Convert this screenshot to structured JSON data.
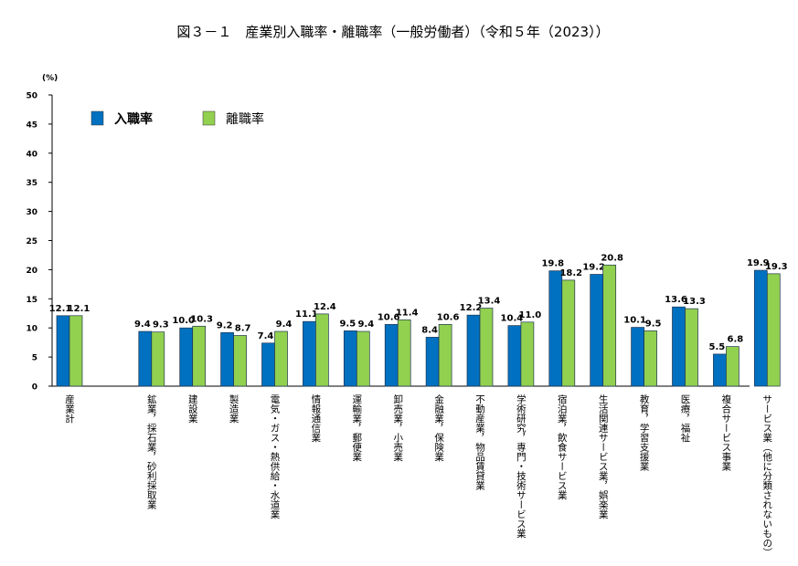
{
  "chart_data": {
    "type": "bar",
    "title": "図３－１　産業別入職率・離職率（一般労働者）（令和５年（2023））",
    "y_unit": "(%)",
    "categories": [
      "産業計",
      null,
      "鉱業，採石業，砂利採取業",
      "建設業",
      "製造業",
      "電気・ガス・熱供給・水道業",
      "情報通信業",
      "運輸業，郵便業",
      "卸売業，小売業",
      "金融業，保険業",
      "不動産業，物品賃貸業",
      "学術研究，専門・技術サービス業",
      "宿泊業，飲食サービス業",
      "生活関連サービス業，娯楽業",
      "教育，学習支援業",
      "医療，福祉",
      "複合サービス事業",
      "サービス業（他に分類されないもの）"
    ],
    "series": [
      {
        "name": "入職率",
        "color": "#0070c0",
        "values": [
          12.1,
          null,
          9.4,
          10.0,
          9.2,
          7.4,
          11.1,
          9.5,
          10.6,
          8.4,
          12.2,
          10.4,
          19.8,
          19.2,
          10.1,
          13.6,
          5.5,
          19.9
        ],
        "value_labels": [
          "12.1",
          null,
          "9.4",
          "10.0",
          "9.2",
          "7.4",
          "11.1",
          "9.5",
          "10.6",
          "8.4",
          "12.2",
          "10.4",
          "19.8",
          "19.2",
          "10.1",
          "13.6",
          "5.5",
          "19.9"
        ]
      },
      {
        "name": "離職率",
        "color": "#92d050",
        "values": [
          12.1,
          null,
          9.3,
          10.3,
          8.7,
          9.4,
          12.4,
          9.4,
          11.4,
          10.6,
          13.4,
          11.0,
          18.2,
          20.8,
          9.5,
          13.3,
          6.8,
          19.3
        ],
        "value_labels": [
          "12.1",
          null,
          "9.3",
          "10.3",
          "8.7",
          "9.4",
          "12.4",
          "9.4",
          "11.4",
          "10.6",
          "13.4",
          "11.0",
          "18.2",
          "20.8",
          "9.5",
          "13.3",
          "6.8",
          "19.3"
        ]
      }
    ],
    "ylim": [
      0,
      50
    ],
    "yticks": [
      0,
      5,
      10,
      15,
      20,
      25,
      30,
      35,
      40,
      45,
      50
    ]
  }
}
